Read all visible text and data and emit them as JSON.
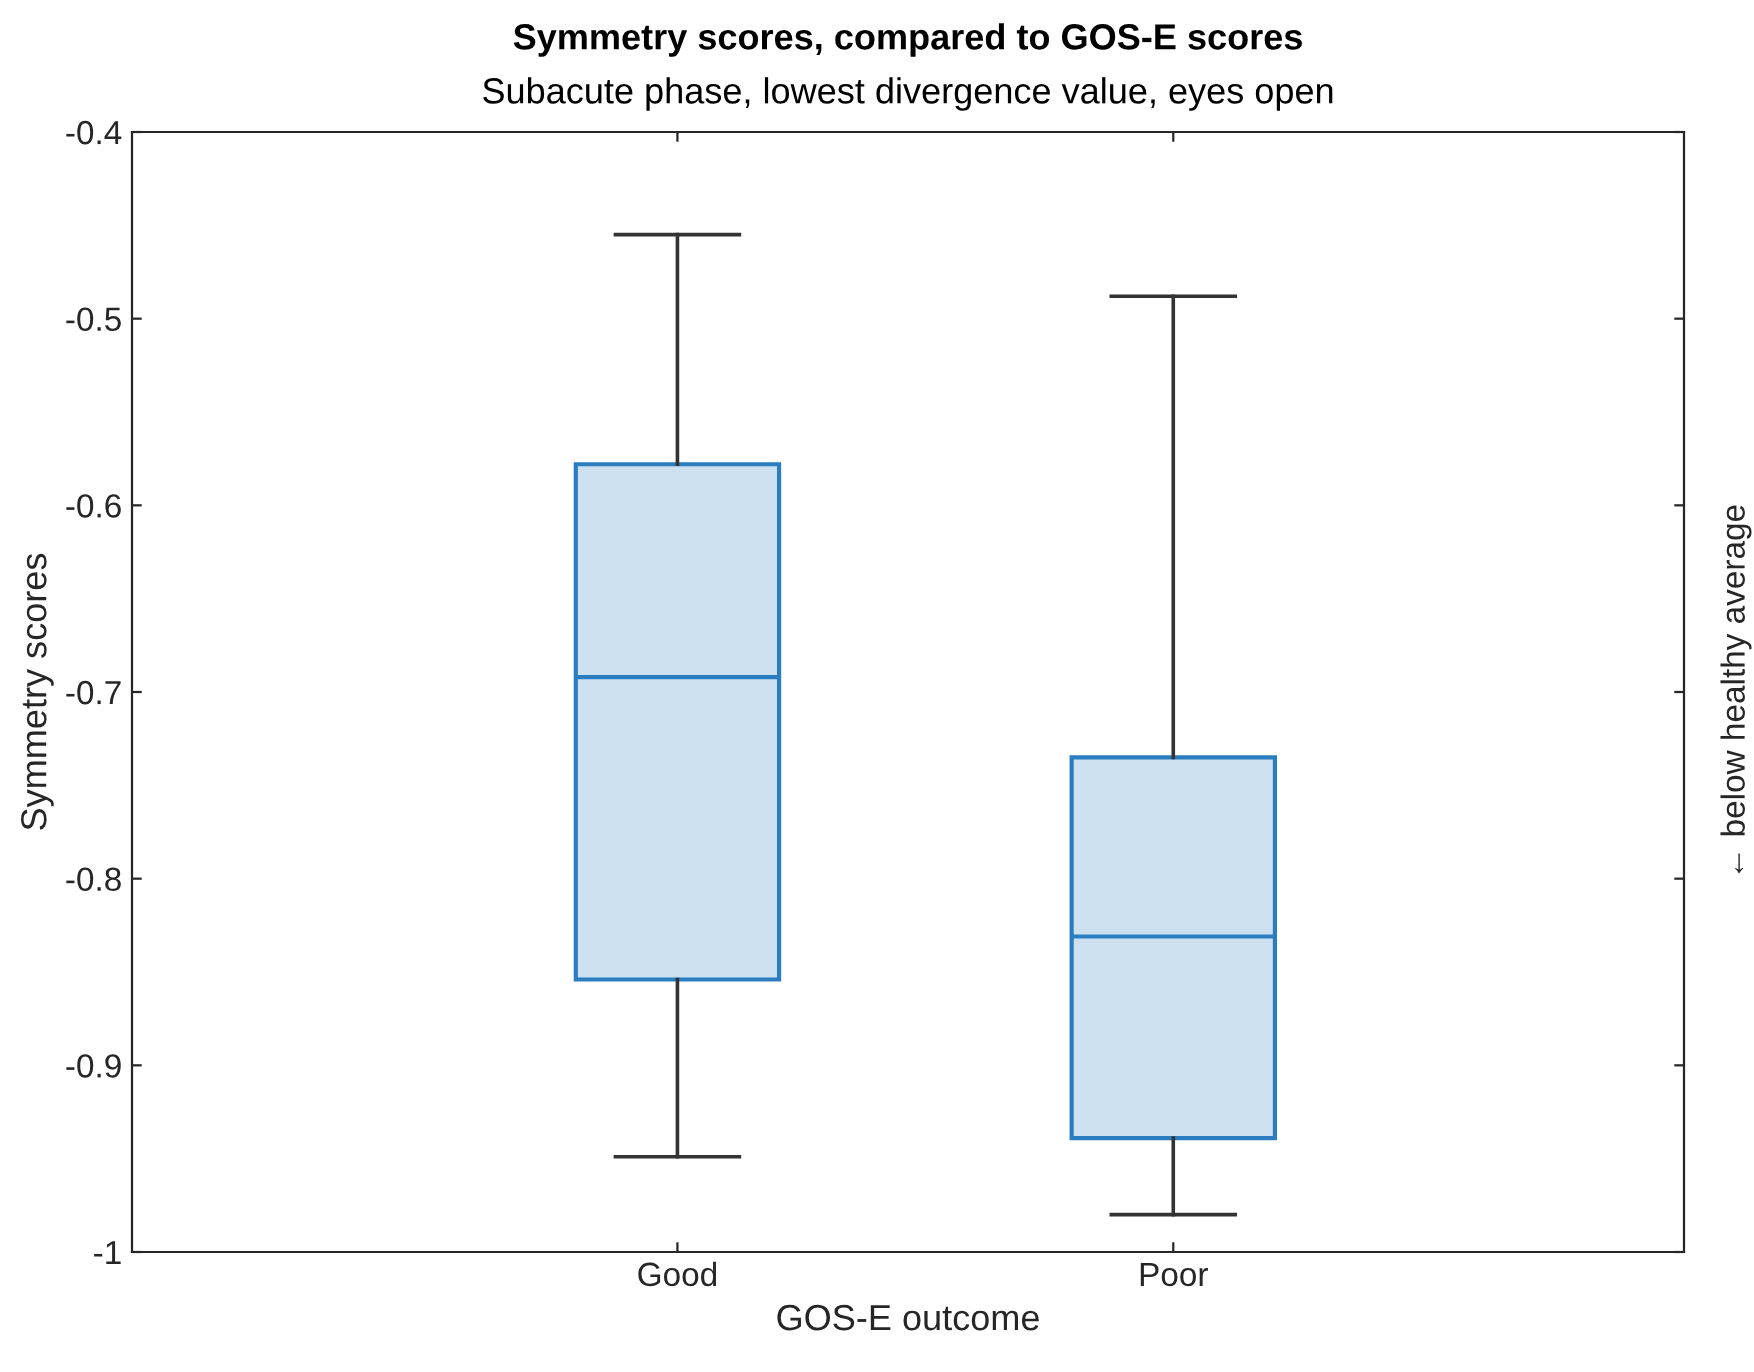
{
  "chart_data": {
    "type": "box",
    "title": "Symmetry scores, compared to GOS-E scores",
    "subtitle": "Subacute phase, lowest divergence value, eyes open",
    "xlabel": "GOS-E outcome",
    "ylabel": "Symmetry scores",
    "annotations": [
      "← below healthy average"
    ],
    "categories": [
      "Good",
      "Poor"
    ],
    "boxes": [
      {
        "low": -0.949,
        "q1": -0.854,
        "median": -0.692,
        "q3": -0.578,
        "high": -0.455
      },
      {
        "low": -0.98,
        "q1": -0.939,
        "median": -0.831,
        "q3": -0.735,
        "high": -0.488
      }
    ],
    "color": "#2a7dbf",
    "ylim": [
      -1,
      -0.4
    ],
    "yticks": [
      -1,
      -0.9,
      -0.8,
      -0.7,
      -0.6,
      -0.5,
      -0.4
    ],
    "grid": false,
    "legend": false
  }
}
